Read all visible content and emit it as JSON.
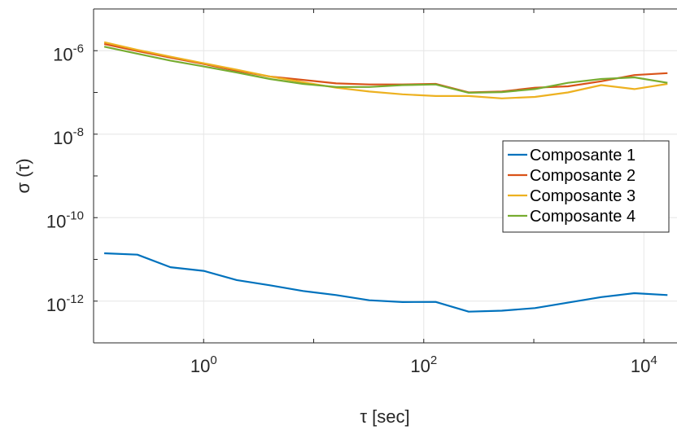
{
  "chart_data": {
    "type": "line",
    "title": "",
    "xlabel": "τ [sec]",
    "ylabel": "σ (τ)",
    "xscale": "log",
    "yscale": "log",
    "xlim": [
      0.1,
      20000
    ],
    "ylim": [
      1e-13,
      1e-05
    ],
    "grid": true,
    "legend_position": "right",
    "x_ticks": [
      {
        "base": "10",
        "exp": "0"
      },
      {
        "base": "10",
        "exp": "2"
      },
      {
        "base": "10",
        "exp": "4"
      }
    ],
    "y_ticks": [
      {
        "base": "10",
        "exp": "-12"
      },
      {
        "base": "10",
        "exp": "-10"
      },
      {
        "base": "10",
        "exp": "-8"
      },
      {
        "base": "10",
        "exp": "-6"
      }
    ],
    "x": [
      0.125,
      0.25,
      0.5,
      1,
      2,
      4,
      8,
      16,
      32,
      64,
      128,
      256,
      512,
      1024,
      2048,
      4096,
      8192,
      16384
    ],
    "series": [
      {
        "name": "Composante 1",
        "color": "#0072BD",
        "values": [
          1.4e-11,
          1.3e-11,
          6.5e-12,
          5.3e-12,
          3.2e-12,
          2.4e-12,
          1.75e-12,
          1.4e-12,
          1.05e-12,
          9.5e-13,
          9.6e-13,
          5.6e-13,
          5.9e-13,
          6.8e-13,
          9.2e-13,
          1.25e-12,
          1.55e-12,
          1.4e-12
        ]
      },
      {
        "name": "Composante 2",
        "color": "#D95319",
        "values": [
          1.45e-06,
          9.8e-07,
          6.8e-07,
          4.8e-07,
          3.3e-07,
          2.4e-07,
          2e-07,
          1.65e-07,
          1.55e-07,
          1.55e-07,
          1.6e-07,
          1e-07,
          1.05e-07,
          1.3e-07,
          1.4e-07,
          1.85e-07,
          2.6e-07,
          2.9e-07
        ]
      },
      {
        "name": "Composante 3",
        "color": "#EDB120",
        "values": [
          1.6e-06,
          1.05e-06,
          7.2e-07,
          5e-07,
          3.5e-07,
          2.4e-07,
          1.75e-07,
          1.3e-07,
          1.05e-07,
          9e-08,
          8.2e-08,
          8.2e-08,
          7.2e-08,
          7.8e-08,
          1e-07,
          1.5e-07,
          1.2e-07,
          1.6e-07
        ]
      },
      {
        "name": "Composante 4",
        "color": "#77AC30",
        "values": [
          1.25e-06,
          8.5e-07,
          5.8e-07,
          4.2e-07,
          3e-07,
          2.1e-07,
          1.6e-07,
          1.35e-07,
          1.35e-07,
          1.5e-07,
          1.55e-07,
          9.8e-08,
          1.02e-07,
          1.2e-07,
          1.7e-07,
          2.1e-07,
          2.3e-07,
          1.7e-07
        ]
      }
    ]
  }
}
